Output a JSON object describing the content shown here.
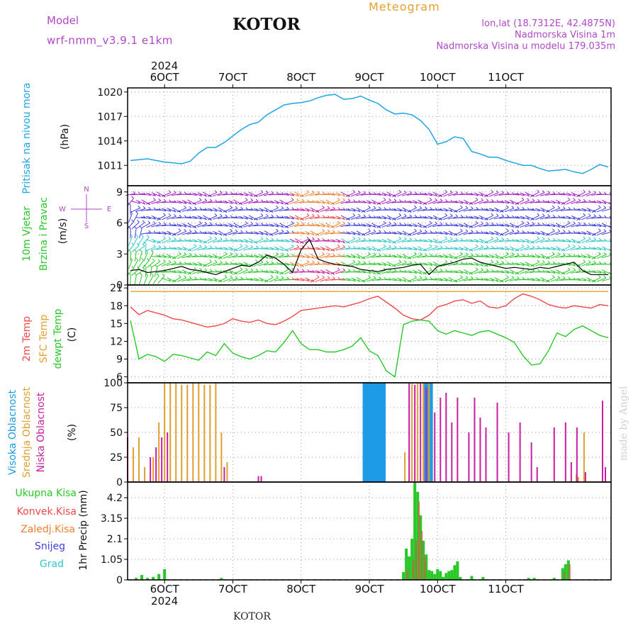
{
  "header": {
    "model_label": "Model",
    "model_name": "wrf-nmm_v3.9.1  e1km",
    "station": "KOTOR",
    "meteogram": "Meteogram",
    "lonlat": "lon,lat (18.7312E, 42.4875N)",
    "altitude": "Nadmorska Visina 1m",
    "model_altitude": "Nadmorska Visina u modelu 179.035m",
    "footer_station": "KOTOR",
    "credit": "made by Angel"
  },
  "colors": {
    "pressure": "#1ea5e6",
    "temp": "#f04848",
    "sfc_temp": "#e8a030",
    "dewpt": "#28c828",
    "high_cloud": "#1e9be6",
    "mid_cloud": "#e0a030",
    "low_cloud": "#c81ea0",
    "total_precip": "#28c828",
    "conv_precip": "#f04848",
    "frozen_precip": "#f08030",
    "snow": "#4040e0",
    "hail": "#30c8c8",
    "purple_text": "#b048c8",
    "orange_text": "#e8a030"
  },
  "chart_data": [
    {
      "type": "line",
      "title": "Pritisak na nivou mora",
      "ylabel": "(hPa)",
      "ylim": [
        1008.5,
        1020.5
      ],
      "yticks": [
        1011,
        1014,
        1017,
        1020
      ],
      "x_unit": "hours since 6 Oct 2024 00:00",
      "top_year": "2024",
      "bottom_year": "2024",
      "x_ticks": [
        {
          "day": 6,
          "label": "6OCT"
        },
        {
          "day": 7,
          "label": "7OCT"
        },
        {
          "day": 8,
          "label": "8OCT"
        },
        {
          "day": 9,
          "label": "9OCT"
        },
        {
          "day": 10,
          "label": "10OCT"
        },
        {
          "day": 11,
          "label": "11OCT"
        }
      ],
      "x": [
        -12,
        -9,
        -6,
        -3,
        0,
        3,
        6,
        9,
        12,
        15,
        18,
        21,
        24,
        27,
        30,
        33,
        36,
        39,
        42,
        45,
        48,
        51,
        54,
        57,
        60,
        63,
        66,
        69,
        72,
        75,
        78,
        81,
        84,
        87,
        90,
        93,
        96,
        99,
        102,
        105,
        108,
        111,
        114,
        117,
        120,
        123,
        126,
        129,
        132,
        135,
        138,
        141,
        144,
        147,
        150,
        153,
        156
      ],
      "series": [
        {
          "name": "Pritisak",
          "values": [
            1011.6,
            1011.7,
            1011.8,
            1011.6,
            1011.4,
            1011.3,
            1011.2,
            1011.5,
            1012.5,
            1013.2,
            1013.2,
            1013.8,
            1014.6,
            1015.4,
            1016.0,
            1016.3,
            1017.2,
            1017.8,
            1018.4,
            1018.6,
            1018.7,
            1018.9,
            1019.3,
            1019.6,
            1019.7,
            1019.1,
            1019.2,
            1019.5,
            1019.0,
            1018.6,
            1017.8,
            1017.3,
            1017.4,
            1017.2,
            1016.5,
            1015.4,
            1013.6,
            1013.9,
            1014.5,
            1014.3,
            1012.7,
            1012.4,
            1012.0,
            1012.0,
            1011.6,
            1011.3,
            1011.0,
            1011.0,
            1010.6,
            1010.3,
            1010.4,
            1010.5,
            1010.2,
            1010.0,
            1010.5,
            1011.1,
            1010.8
          ]
        }
      ]
    },
    {
      "type": "line",
      "title": "10m Vjetar Brzina i Pravac",
      "ylabel": "(m/s)",
      "ylim": [
        0,
        9.6
      ],
      "yticks": [
        0,
        3,
        6,
        9
      ],
      "compass": {
        "n": "N",
        "s": "S",
        "w": "W",
        "e": "E"
      },
      "x": [
        -12,
        -9,
        -6,
        -3,
        0,
        3,
        6,
        9,
        12,
        15,
        18,
        21,
        24,
        27,
        30,
        33,
        36,
        39,
        42,
        45,
        48,
        51,
        54,
        57,
        60,
        63,
        66,
        69,
        72,
        75,
        78,
        81,
        84,
        87,
        90,
        93,
        96,
        99,
        102,
        105,
        108,
        111,
        114,
        117,
        120,
        123,
        126,
        129,
        132,
        135,
        138,
        141,
        144,
        147,
        150,
        153,
        156
      ],
      "series": [
        {
          "name": "Brzina",
          "values": [
            1.4,
            1.5,
            1.2,
            1.3,
            1.4,
            1.6,
            1.8,
            1.5,
            1.4,
            1.2,
            1.0,
            1.3,
            1.6,
            1.9,
            1.8,
            2.2,
            2.9,
            2.6,
            2.0,
            1.2,
            3.4,
            4.4,
            2.5,
            2.2,
            2.0,
            1.9,
            1.8,
            1.5,
            1.4,
            1.3,
            1.5,
            1.6,
            1.7,
            1.9,
            2.0,
            1.0,
            1.8,
            2.0,
            2.2,
            2.5,
            2.6,
            2.2,
            2.0,
            1.8,
            1.6,
            1.7,
            1.6,
            1.5,
            1.7,
            1.6,
            1.8,
            2.0,
            2.2,
            1.4,
            1.0,
            1.0,
            1.0
          ]
        }
      ]
    },
    {
      "type": "line",
      "title": "2m Temp / SFC Temp / dewpt Temp",
      "ylabel": "(C)",
      "ylim": [
        5,
        21.5
      ],
      "yticks": [
        6,
        9,
        12,
        15,
        18,
        21
      ],
      "x": [
        -12,
        -9,
        -6,
        -3,
        0,
        3,
        6,
        9,
        12,
        15,
        18,
        21,
        24,
        27,
        30,
        33,
        36,
        39,
        42,
        45,
        48,
        51,
        54,
        57,
        60,
        63,
        66,
        69,
        72,
        75,
        78,
        81,
        84,
        87,
        90,
        93,
        96,
        99,
        102,
        105,
        108,
        111,
        114,
        117,
        120,
        123,
        126,
        129,
        132,
        135,
        138,
        141,
        144,
        147,
        150,
        153,
        156
      ],
      "series": [
        {
          "name": "2m Temp",
          "values": [
            17.8,
            16.5,
            17.2,
            16.8,
            16.4,
            15.8,
            15.6,
            15.2,
            14.8,
            14.4,
            14.6,
            15.0,
            15.8,
            15.4,
            15.2,
            15.6,
            15.0,
            14.8,
            15.4,
            16.2,
            17.2,
            17.4,
            17.6,
            17.8,
            18.0,
            17.8,
            18.2,
            18.6,
            19.2,
            19.6,
            18.6,
            17.6,
            16.4,
            15.8,
            15.6,
            16.4,
            17.8,
            18.2,
            18.8,
            19.0,
            18.4,
            18.8,
            17.8,
            17.6,
            18.0,
            19.2,
            20.0,
            19.6,
            19.0,
            18.2,
            17.8,
            17.6,
            18.0,
            17.8,
            17.6,
            18.2,
            18.0
          ]
        },
        {
          "name": "SFC Temp",
          "values": [
            20.4,
            20.4,
            20.4,
            20.4,
            20.4,
            20.4,
            20.4,
            20.4,
            20.4,
            20.4,
            20.4,
            20.4,
            20.4,
            20.4,
            20.4,
            20.4,
            20.4,
            20.4,
            20.4,
            20.4,
            20.4,
            20.4,
            20.4,
            20.4,
            20.4,
            20.4,
            20.4,
            20.4,
            20.4,
            20.4,
            20.4,
            20.4,
            20.4,
            20.4,
            20.4,
            20.4,
            20.4,
            20.4,
            20.4,
            20.4,
            20.4,
            20.4,
            20.4,
            20.4,
            20.4,
            20.4,
            20.4,
            20.4,
            20.4,
            20.4,
            20.4,
            20.4,
            20.4,
            20.4,
            20.4,
            20.4,
            20.4
          ]
        },
        {
          "name": "dewpt Temp",
          "values": [
            15.5,
            9.0,
            9.8,
            9.4,
            8.6,
            9.8,
            9.6,
            9.2,
            8.8,
            10.2,
            9.6,
            11.6,
            10.0,
            9.4,
            9.0,
            9.6,
            10.4,
            10.2,
            11.8,
            13.8,
            11.6,
            10.6,
            10.6,
            10.2,
            10.2,
            10.6,
            11.2,
            12.6,
            10.4,
            9.6,
            7.0,
            6.0,
            14.8,
            15.4,
            15.6,
            15.4,
            13.8,
            13.2,
            13.8,
            13.4,
            13.0,
            13.6,
            13.8,
            13.2,
            12.6,
            11.8,
            9.6,
            8.0,
            8.2,
            10.4,
            13.4,
            12.8,
            14.0,
            14.6,
            13.8,
            13.0,
            12.6
          ]
        }
      ]
    },
    {
      "type": "bar",
      "title": "Visoka / Srednja / Niska Oblacnost",
      "ylabel": "(%)",
      "ylim": [
        0,
        100
      ],
      "yticks": [
        0,
        25,
        50,
        75,
        100
      ],
      "series": [
        {
          "name": "Visoka Oblacnost",
          "x": [
            70.4,
            71.5,
            72.6,
            73.7,
            74.8,
            75.9,
            77.0,
            91.6,
            92.7,
            93.6
          ],
          "values": [
            100,
            100,
            100,
            100,
            100,
            100,
            100,
            100,
            100,
            100
          ]
        },
        {
          "name": "Srednja Oblacnost",
          "x": [
            -11,
            -9,
            -7,
            -4,
            -2,
            0,
            2,
            4,
            6,
            8,
            10,
            12,
            14,
            16,
            18,
            20,
            22,
            84.5,
            87,
            89,
            91,
            93,
            144.8,
            145.5,
            147.5
          ],
          "values": [
            35,
            45,
            15,
            25,
            60,
            100,
            100,
            100,
            98,
            98,
            100,
            100,
            98,
            98,
            100,
            50,
            20,
            30,
            100,
            100,
            100,
            100,
            8,
            5,
            50
          ]
        },
        {
          "name": "Niska Oblacnost",
          "x": [
            -13,
            -5,
            -3,
            -1,
            1,
            21,
            33,
            34,
            86,
            88,
            90,
            92,
            95,
            97,
            99,
            101,
            103,
            107,
            109,
            111,
            113,
            117,
            121,
            125,
            129,
            131,
            137,
            141,
            143,
            145,
            148,
            154,
            155
          ],
          "values": [
            45,
            25,
            35,
            45,
            50,
            15,
            6,
            6,
            100,
            98,
            100,
            95,
            70,
            85,
            90,
            60,
            85,
            50,
            85,
            65,
            55,
            80,
            50,
            60,
            40,
            15,
            55,
            60,
            20,
            55,
            10,
            82,
            15
          ]
        }
      ]
    },
    {
      "type": "bar",
      "title": "1hr Precip",
      "ylabel": "1hr Precip (mm)",
      "ylim": [
        0,
        5.0
      ],
      "yticks": [
        "0",
        "1.05",
        "2.1",
        "3.15",
        "4.2"
      ],
      "ytick_values": [
        0,
        1.05,
        2.1,
        3.15,
        4.2
      ],
      "legend": [
        "Ukupna  Kisa",
        "Konvek.Kisa",
        "Zaledj.Kisa",
        "Snijeg",
        "Grad"
      ],
      "series": [
        {
          "name": "Ukupna Kisa",
          "x": [
            -10,
            -8,
            -6,
            -4,
            -2,
            0,
            20,
            84,
            85,
            86,
            87,
            88,
            89,
            90,
            91,
            92,
            93,
            94,
            95,
            96,
            97,
            98,
            99,
            100,
            101,
            102,
            103,
            104,
            108,
            112,
            128,
            130,
            137,
            140,
            141,
            142
          ],
          "values": [
            0.1,
            0.25,
            0.1,
            0.15,
            0.3,
            0.55,
            0.1,
            0.4,
            1.6,
            1.2,
            2.1,
            5.0,
            4.5,
            3.3,
            2.0,
            1.3,
            0.5,
            0.45,
            0.3,
            0.55,
            0.45,
            0.15,
            0.35,
            0.45,
            0.5,
            0.75,
            0.95,
            0.15,
            0.2,
            0.15,
            0.1,
            0.1,
            0.1,
            0.6,
            0.8,
            1.0
          ]
        },
        {
          "name": "Konvek.Kisa",
          "x": [
            85,
            87,
            88,
            89,
            90,
            91,
            140,
            142
          ],
          "values": [
            0.5,
            1.0,
            2.0,
            4.0,
            2.5,
            1.2,
            0.4,
            0.8
          ]
        }
      ]
    }
  ]
}
